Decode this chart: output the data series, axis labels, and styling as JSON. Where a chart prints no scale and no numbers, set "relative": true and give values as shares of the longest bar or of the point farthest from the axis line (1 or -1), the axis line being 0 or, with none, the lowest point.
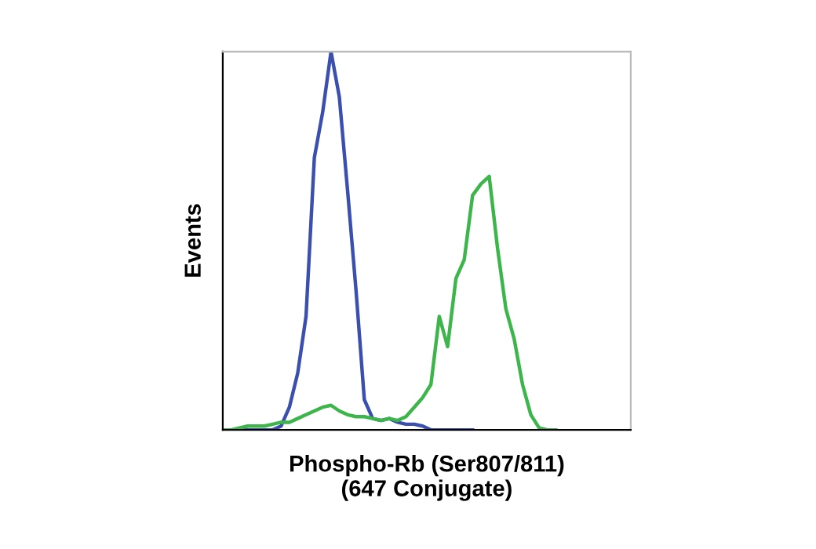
{
  "chart_data": {
    "type": "line",
    "relative": true,
    "xlabel": "Phospho-Rb (Ser807/811)\n(647 Conjugate)",
    "ylabel": "Events",
    "legend": false,
    "grid": false,
    "categories": [
      null,
      null,
      null,
      null,
      null,
      null,
      null,
      null,
      null,
      null,
      null,
      null,
      null,
      null,
      null,
      null,
      null,
      null,
      null,
      null,
      null,
      null,
      null,
      null,
      null,
      null,
      null,
      null,
      null,
      null,
      null,
      null,
      null,
      null,
      null,
      null,
      null,
      null,
      null,
      null,
      null,
      null,
      null,
      null,
      null,
      null,
      null,
      null,
      null,
      null
    ],
    "series": [
      {
        "color": "#3a4fae",
        "values": [
          0,
          0,
          0,
          0,
          0,
          0,
          0,
          0.01,
          0.06,
          0.15,
          0.3,
          0.72,
          0.84,
          1,
          0.88,
          0.63,
          0.37,
          0.08,
          0.03,
          0.025,
          0.03,
          0.02,
          0.015,
          0.015,
          0.01,
          0,
          0,
          0,
          0,
          0,
          0,
          null,
          null,
          null,
          null,
          null,
          null,
          null,
          null,
          null,
          null,
          null,
          null,
          null,
          null,
          null,
          null,
          null,
          null,
          null
        ]
      },
      {
        "color": "#3cb64a",
        "values": [
          0,
          0,
          0.005,
          0.01,
          0.01,
          0.01,
          0.015,
          0.02,
          0.02,
          0.03,
          0.04,
          0.05,
          0.06,
          0.065,
          0.05,
          0.04,
          0.035,
          0.035,
          0.03,
          0.025,
          0.03,
          0.025,
          0.035,
          0.06,
          0.085,
          0.12,
          0.3,
          0.22,
          0.4,
          0.45,
          0.62,
          0.65,
          0.67,
          0.48,
          0.32,
          0.24,
          0.12,
          0.04,
          0.005,
          0,
          0,
          null,
          null,
          null,
          null,
          null,
          null,
          null,
          null,
          null
        ]
      }
    ]
  }
}
